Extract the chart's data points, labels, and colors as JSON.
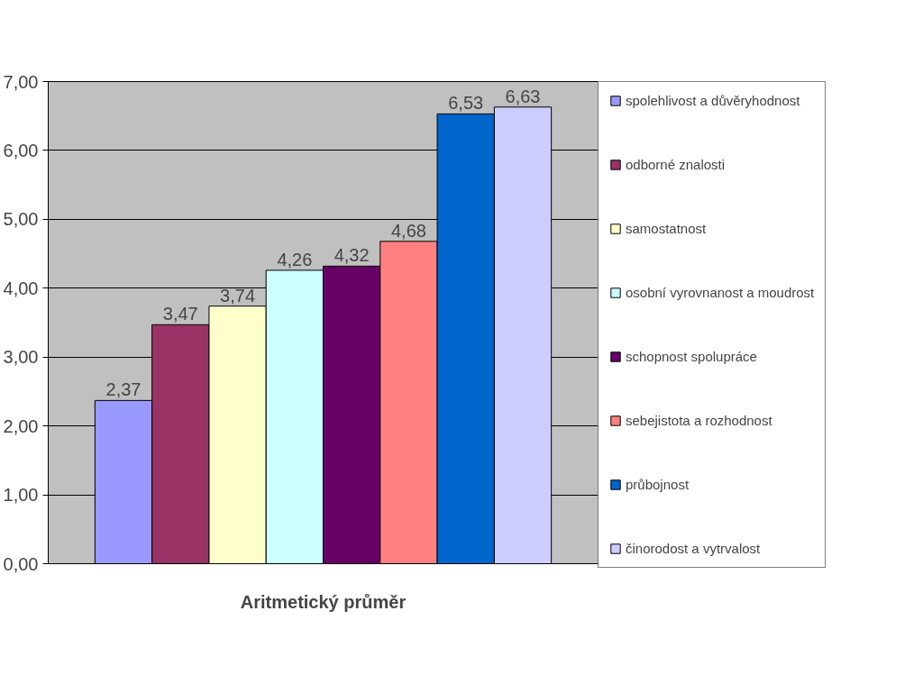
{
  "chart_data": {
    "type": "bar",
    "categories": [
      "Aritmetický průměr"
    ],
    "series": [
      {
        "name": "spolehlivost a důvěryhodnost",
        "color": "#9999ff",
        "values": [
          2.37
        ],
        "value_labels": [
          "2,37"
        ]
      },
      {
        "name": "odborné znalosti",
        "color": "#993366",
        "values": [
          3.47
        ],
        "value_labels": [
          "3,47"
        ]
      },
      {
        "name": "samostatnost",
        "color": "#ffffcc",
        "values": [
          3.74
        ],
        "value_labels": [
          "3,74"
        ]
      },
      {
        "name": "osobní vyrovnanost a moudrost",
        "color": "#ccffff",
        "values": [
          4.26
        ],
        "value_labels": [
          "4,26"
        ]
      },
      {
        "name": "schopnost spolupráce",
        "color": "#660066",
        "values": [
          4.32
        ],
        "value_labels": [
          "4,32"
        ]
      },
      {
        "name": "sebejistota a rozhodnost",
        "color": "#ff8080",
        "values": [
          4.68
        ],
        "value_labels": [
          "4,68"
        ]
      },
      {
        "name": "průbojnost",
        "color": "#0066cc",
        "values": [
          6.53
        ],
        "value_labels": [
          "6,53"
        ]
      },
      {
        "name": "činorodost a vytrvalost",
        "color": "#ccccff",
        "values": [
          6.63
        ],
        "value_labels": [
          "6,63"
        ]
      }
    ],
    "ylim": [
      0,
      7
    ],
    "yticks": [
      {
        "value": 0,
        "label": "0,00"
      },
      {
        "value": 1,
        "label": "1,00"
      },
      {
        "value": 2,
        "label": "2,00"
      },
      {
        "value": 3,
        "label": "3,00"
      },
      {
        "value": 4,
        "label": "4,00"
      },
      {
        "value": 5,
        "label": "5,00"
      },
      {
        "value": 6,
        "label": "6,00"
      },
      {
        "value": 7,
        "label": "7,00"
      }
    ],
    "grid": "y",
    "legend": "right"
  }
}
